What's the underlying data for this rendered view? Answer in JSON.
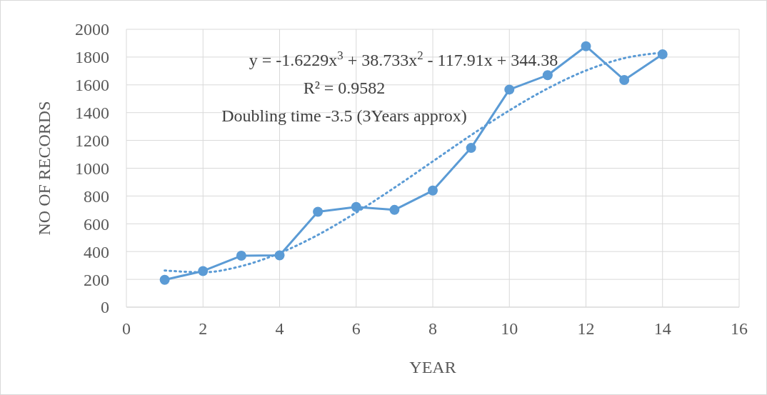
{
  "chart_data": {
    "type": "line",
    "xlabel": "YEAR",
    "ylabel": "NO OF RECORDS",
    "xlim": [
      0,
      16
    ],
    "xticks": [
      0,
      2,
      4,
      6,
      8,
      10,
      12,
      14,
      16
    ],
    "ylim": [
      0,
      2000
    ],
    "yticks": [
      0,
      200,
      400,
      600,
      800,
      1000,
      1200,
      1400,
      1600,
      1800,
      2000
    ],
    "grid": true,
    "series": [
      {
        "color": "#5b9bd5",
        "marker": "circle",
        "line_style": "solid",
        "x": [
          1,
          2,
          3,
          4,
          5,
          6,
          7,
          8,
          9,
          10,
          11,
          12,
          13,
          14
        ],
        "values": [
          197,
          260,
          370,
          373,
          686,
          721,
          700,
          839,
          1146,
          1566,
          1670,
          1878,
          1635,
          1820
        ]
      },
      {
        "color": "#5b9bd5",
        "marker": "none",
        "line_style": "dotted",
        "x": [
          1,
          2,
          3,
          4,
          5,
          6,
          7,
          8,
          9,
          10,
          11,
          12,
          13,
          14
        ],
        "values": [
          264,
          251,
          295,
          389,
          520,
          681,
          860,
          1049,
          1238,
          1416,
          1574,
          1703,
          1792,
          1832
        ]
      }
    ],
    "annotations": [
      "y = -1.6229x$^{3}$ + 38.733x$^{2}$ - 117.91x + 344.38",
      "R² = 0.9582",
      "Doubling time -3.5 (3Years approx)"
    ]
  }
}
